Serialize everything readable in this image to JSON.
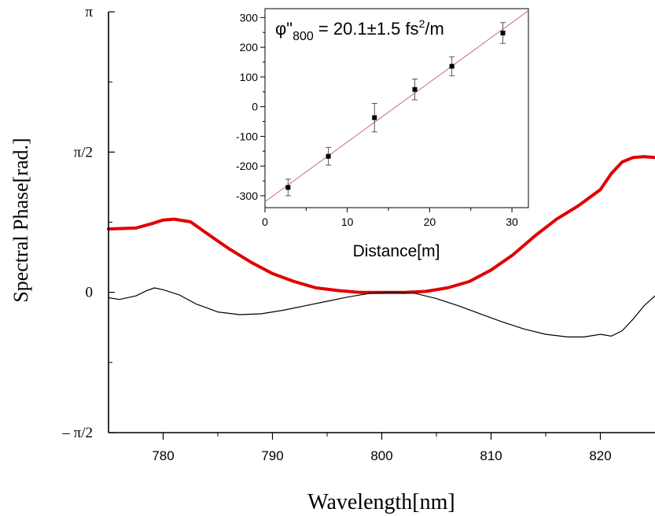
{
  "chart_data": [
    {
      "type": "line",
      "xlabel": "Wavelength[nm]",
      "ylabel": "Spectral Phase[rad.]",
      "xlim": [
        775,
        825
      ],
      "ylim": [
        -1.5708,
        3.1416
      ],
      "x_ticks": [
        {
          "value": 780,
          "label": "780"
        },
        {
          "value": 790,
          "label": "790"
        },
        {
          "value": 800,
          "label": "800"
        },
        {
          "value": 810,
          "label": "810"
        },
        {
          "value": 820,
          "label": "820"
        }
      ],
      "y_ticks": [
        {
          "value": -1.5708,
          "label": "– π/2"
        },
        {
          "value": 0,
          "label": "0"
        },
        {
          "value": 1.5708,
          "label": "π/2"
        },
        {
          "value": 3.1416,
          "label": "π"
        }
      ],
      "grid": false,
      "series": [
        {
          "color": "#e00000",
          "x": [
            775,
            777.5,
            779,
            780,
            781,
            782.5,
            784,
            786,
            788,
            790,
            792,
            794,
            796,
            798,
            800,
            802,
            804,
            806,
            808,
            810,
            812,
            814,
            816,
            818,
            820,
            821,
            822,
            823,
            824,
            825
          ],
          "y": [
            0.71,
            0.72,
            0.77,
            0.81,
            0.82,
            0.79,
            0.66,
            0.49,
            0.34,
            0.21,
            0.12,
            0.05,
            0.02,
            0.0,
            0.0,
            0.0,
            0.01,
            0.05,
            0.12,
            0.25,
            0.42,
            0.63,
            0.82,
            0.97,
            1.15,
            1.33,
            1.46,
            1.51,
            1.52,
            1.51
          ]
        },
        {
          "color": "#000000",
          "x": [
            775,
            776,
            777.5,
            778.5,
            779.2,
            780,
            781.5,
            783,
            785,
            787,
            789,
            791,
            793,
            795,
            797,
            799,
            801,
            803,
            805,
            807,
            809,
            811,
            813,
            815,
            817,
            818.5,
            820,
            821,
            822,
            823,
            824,
            825
          ],
          "y": [
            -0.06,
            -0.08,
            -0.04,
            0.02,
            0.05,
            0.03,
            -0.03,
            -0.13,
            -0.22,
            -0.25,
            -0.24,
            -0.2,
            -0.15,
            -0.1,
            -0.05,
            -0.01,
            0.0,
            -0.01,
            -0.07,
            -0.15,
            -0.24,
            -0.33,
            -0.41,
            -0.47,
            -0.5,
            -0.5,
            -0.47,
            -0.49,
            -0.43,
            -0.3,
            -0.15,
            -0.04
          ]
        }
      ]
    },
    {
      "type": "scatter",
      "xlabel": "Distance[m]",
      "ylabel": "",
      "annotation": {
        "prefix": "φ\"",
        "subscript": "800",
        "value": " = 20.1±1.5 fs",
        "superscript": "2",
        "suffix": "/m"
      },
      "xlim": [
        0,
        32
      ],
      "ylim": [
        -340,
        330
      ],
      "x_ticks": [
        0,
        10,
        20,
        30
      ],
      "y_ticks": [
        -300,
        -200,
        -100,
        0,
        100,
        200,
        300
      ],
      "grid": false,
      "points": [
        {
          "x": 2.8,
          "y": -272,
          "err": 28
        },
        {
          "x": 7.7,
          "y": -167,
          "err": 30
        },
        {
          "x": 13.3,
          "y": -37,
          "err": 48
        },
        {
          "x": 18.2,
          "y": 58,
          "err": 35
        },
        {
          "x": 22.7,
          "y": 136,
          "err": 32
        },
        {
          "x": 28.9,
          "y": 248,
          "err": 35
        }
      ],
      "fit": {
        "color": "#c87070",
        "slope": 20.1,
        "intercept": -320
      }
    }
  ]
}
